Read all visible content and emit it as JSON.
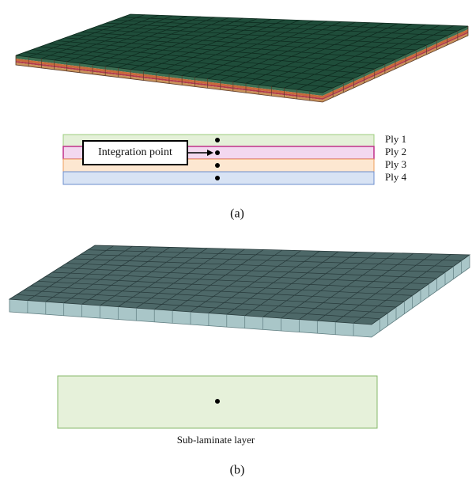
{
  "plies": [
    "Ply 1",
    "Ply 2",
    "Ply 3",
    "Ply 4"
  ],
  "annotation": "Integration point",
  "caption_a": "(a)",
  "sublaminate_label": "Sub-laminate layer",
  "caption_b": "(b)"
}
